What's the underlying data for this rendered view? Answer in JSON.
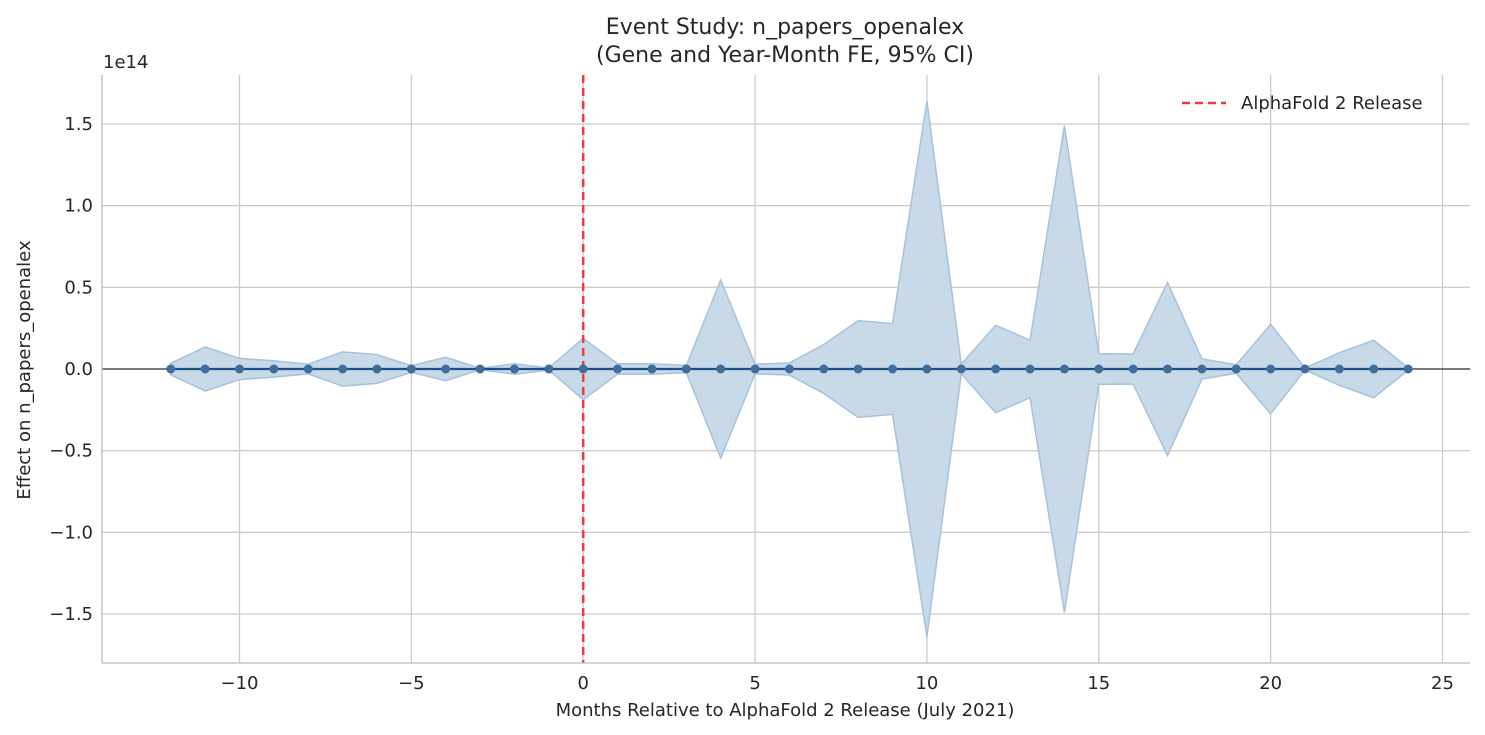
{
  "chart_data": {
    "type": "line",
    "title_line1": "Event Study: n_papers_openalex",
    "title_line2": "(Gene and Year-Month FE, 95% CI)",
    "xlabel": "Months Relative to AlphaFold 2 Release (July 2021)",
    "ylabel": "Effect on n_papers_openalex",
    "y_offset_label": "1e14",
    "y_scale": 100000000000000.0,
    "xlim": [
      -14,
      25.8
    ],
    "ylim": [
      -180000000000000.0,
      180000000000000.0
    ],
    "xticks": [
      -10,
      -5,
      0,
      5,
      10,
      15,
      20,
      25
    ],
    "xtick_labels": [
      "−10",
      "−5",
      "0",
      "5",
      "10",
      "15",
      "20",
      "25"
    ],
    "yticks": [
      -150000000000000.0,
      -100000000000000.0,
      -50000000000000.0,
      0,
      50000000000000.0,
      100000000000000.0,
      150000000000000.0
    ],
    "ytick_labels": [
      "−1.5",
      "−1.0",
      "−0.5",
      "0.0",
      "0.5",
      "1.0",
      "1.5"
    ],
    "grid": true,
    "legend": {
      "position": "top-right",
      "entries": [
        {
          "label": "AlphaFold 2 Release",
          "style": "dashed",
          "color": "#ee3b3b"
        }
      ]
    },
    "vline": {
      "x": 0,
      "color": "#ee3b3b"
    },
    "hline": {
      "y": 0,
      "color": "#000000"
    },
    "series": {
      "x": [
        -12,
        -11,
        -10,
        -9,
        -8,
        -7,
        -6,
        -5,
        -4,
        -3,
        -2,
        -1,
        0,
        1,
        2,
        3,
        4,
        5,
        6,
        7,
        8,
        9,
        10,
        11,
        12,
        13,
        14,
        15,
        16,
        17,
        18,
        19,
        20,
        21,
        22,
        23,
        24
      ],
      "estimate": [
        0,
        0,
        0,
        0,
        0,
        0,
        0,
        0,
        0,
        0,
        0,
        0,
        0,
        0,
        0,
        0,
        0,
        0,
        0,
        0,
        0,
        0,
        0,
        0,
        0,
        0,
        0,
        0,
        0,
        0,
        0,
        0,
        0,
        0,
        0,
        0,
        0
      ],
      "ci_half_width": [
        3500000000000.0,
        13500000000000.0,
        6500000000000.0,
        5000000000000.0,
        3000000000000.0,
        10500000000000.0,
        8800000000000.0,
        2000000000000.0,
        7200000000000.0,
        400000000000.0,
        3200000000000.0,
        600000000000.0,
        18800000000000.0,
        3200000000000.0,
        3200000000000.0,
        2200000000000.0,
        54500000000000.0,
        3000000000000.0,
        3700000000000.0,
        15000000000000.0,
        29600000000000.0,
        27800000000000.0,
        164000000000000.0,
        3000000000000.0,
        26800000000000.0,
        17600000000000.0,
        149000000000000.0,
        9400000000000.0,
        9200000000000.0,
        53000000000000.0,
        6200000000000.0,
        2600000000000.0,
        27400000000000.0,
        600000000000.0,
        10000000000000.0,
        17600000000000.0,
        800000000000.0
      ]
    },
    "colors": {
      "ci_fill": "#c8d9e8",
      "ci_edge": "#a6c2dc",
      "line": "#1f4e86",
      "points": "#3f6e9e",
      "grid": "#cccccc"
    }
  }
}
